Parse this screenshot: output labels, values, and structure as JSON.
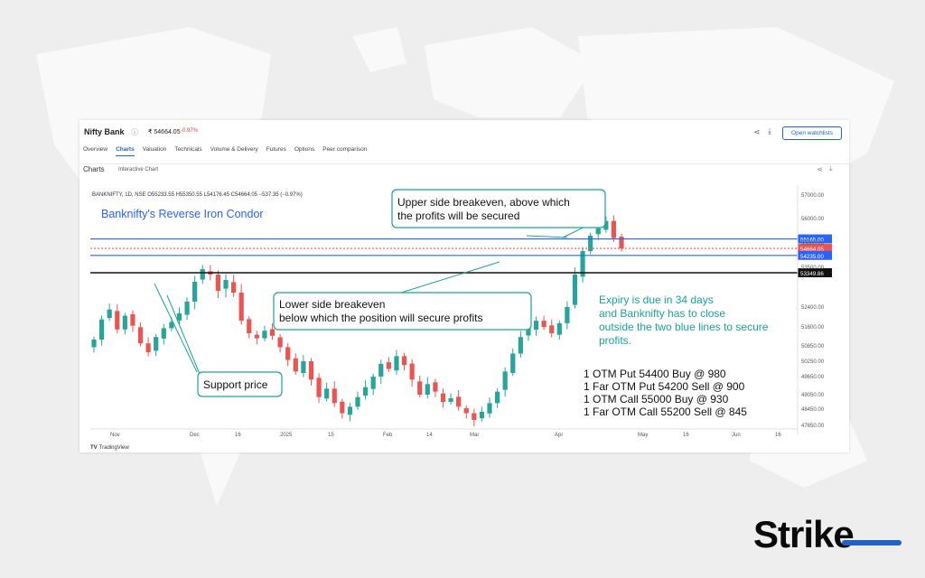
{
  "header": {
    "stock_name": "Nifty Bank",
    "price": "₹ 54664.05",
    "price_change": "-0.97%",
    "watchlist_button": "Open watchlists",
    "tabs": [
      "Overview",
      "Charts",
      "Valuation",
      "Technicals",
      "Volume & Delivery",
      "Futures",
      "Options",
      "Peer comparison"
    ],
    "active_tab": "Charts"
  },
  "subheader": {
    "title": "Charts",
    "mode": "Interactive Chart"
  },
  "brand": {
    "tradingview": "TradingView",
    "strike": "Strike"
  },
  "colors": {
    "up": "#26a69a",
    "down": "#ef5350",
    "blue_line": "#2962ff",
    "support": "#111111",
    "annotation": "#1aa39a"
  },
  "chart_data": {
    "type": "candlestick",
    "ohlc_legend": "BANKNIFTY, 1D, NSE  O55233.55  H55350.55  L54176.45  C54664.05  −537.35 (−0.97%)",
    "title": "Banknifty's Reverse Iron Condor",
    "y_ticks": [
      "57000.00",
      "56000.00",
      "55000.00",
      "53500.00",
      "52400.00",
      "51600.00",
      "50850.00",
      "50250.00",
      "49650.00",
      "49050.00",
      "48450.00",
      "47850.00"
    ],
    "x_ticks": [
      "Nov",
      "Dec",
      "16",
      "2025",
      "15",
      "Feb",
      "14",
      "Mar",
      "Apr",
      "May",
      "16",
      "Jun",
      "16"
    ],
    "levels": [
      {
        "label": "55165.00",
        "value": 55165,
        "color": "#2962ff"
      },
      {
        "label": "54664.05",
        "value": 54664,
        "color": "#ef5350"
      },
      {
        "label": "54235.00",
        "value": 54235,
        "color": "#2962ff"
      },
      {
        "label": "53349.86",
        "value": 53349.86,
        "color": "#111111"
      }
    ],
    "closes": [
      51100,
      51900,
      52300,
      51500,
      52050,
      51650,
      50950,
      50600,
      51200,
      51550,
      51800,
      52150,
      52550,
      53100,
      53450,
      53300,
      52850,
      53150,
      52800,
      51850,
      51350,
      51150,
      51450,
      51250,
      50800,
      50300,
      49850,
      50250,
      49550,
      48950,
      49250,
      48700,
      48300,
      48550,
      48950,
      49300,
      49650,
      50150,
      49950,
      50450,
      50100,
      49550,
      49050,
      49400,
      49150,
      48750,
      48900,
      48550,
      48300,
      48050,
      48350,
      48700,
      49150,
      49850,
      50550,
      51200,
      51550,
      51850,
      51600,
      51350,
      51750,
      52400,
      53300,
      54500,
      55300,
      55600,
      55900,
      55200,
      54664
    ],
    "annotations": [
      "Upper side breakeven, above which",
      "the profits will be secured",
      "Lower  side breakeven",
      "below which the position will secure profits",
      "Support price",
      "Expiry is due in 34 days",
      "and Banknifty has to close",
      "outside the two blue lines to secure",
      "profits."
    ],
    "legs": [
      "1 OTM Put 54400 Buy @ 980",
      "1 Far OTM Put 54200 Sell @ 900",
      "1 OTM Call 55000 Buy @ 930",
      "1 Far OTM Call 55200 Sell @ 845"
    ]
  }
}
